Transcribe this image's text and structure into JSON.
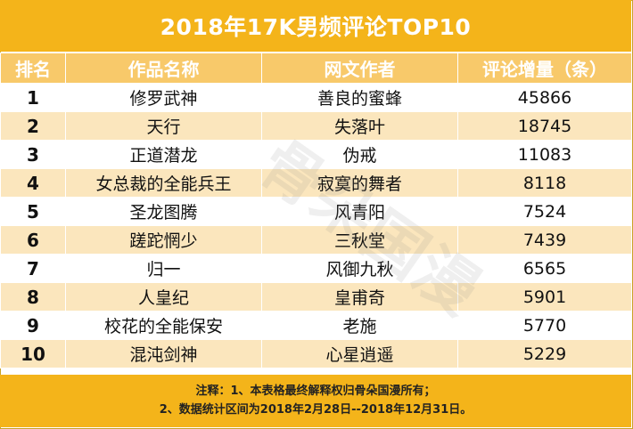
{
  "title": "2018年17K男频评论TOP10",
  "headers": [
    "排名",
    "作品名称",
    "网文作者",
    "评论增量（条）"
  ],
  "rows": [
    {
      "rank": "1",
      "work": "修罗武神",
      "author": "善良的蜜蜂",
      "count": "45866"
    },
    {
      "rank": "2",
      "work": "天行",
      "author": "失落叶",
      "count": "18745"
    },
    {
      "rank": "3",
      "work": "正道潜龙",
      "author": "伪戒",
      "count": "11083"
    },
    {
      "rank": "4",
      "work": "女总裁的全能兵王",
      "author": "寂寞的舞者",
      "count": "8118"
    },
    {
      "rank": "5",
      "work": "圣龙图腾",
      "author": "风青阳",
      "count": "7524"
    },
    {
      "rank": "6",
      "work": "蹉跎惘少",
      "author": "三秋堂",
      "count": "7439"
    },
    {
      "rank": "7",
      "work": "归一",
      "author": "风御九秋",
      "count": "6565"
    },
    {
      "rank": "8",
      "work": "人皇纪",
      "author": "皇甫奇",
      "count": "5901"
    },
    {
      "rank": "9",
      "work": "校花的全能保安",
      "author": "老施",
      "count": "5770"
    },
    {
      "rank": "10",
      "work": "混沌剑神",
      "author": "心星逍遥",
      "count": "5229"
    }
  ],
  "footer": {
    "line1": "注释：1、本表格最终解释权归骨朵国漫所有；",
    "line2": "2、数据统计区间为2018年2月28日--2018年12月31日。"
  },
  "watermark": {
    "text": "骨朵国漫"
  },
  "colors": {
    "title_bg": "#f4b41a",
    "header_bg": "#f8c96a",
    "stripe": "#fbe6bd"
  }
}
